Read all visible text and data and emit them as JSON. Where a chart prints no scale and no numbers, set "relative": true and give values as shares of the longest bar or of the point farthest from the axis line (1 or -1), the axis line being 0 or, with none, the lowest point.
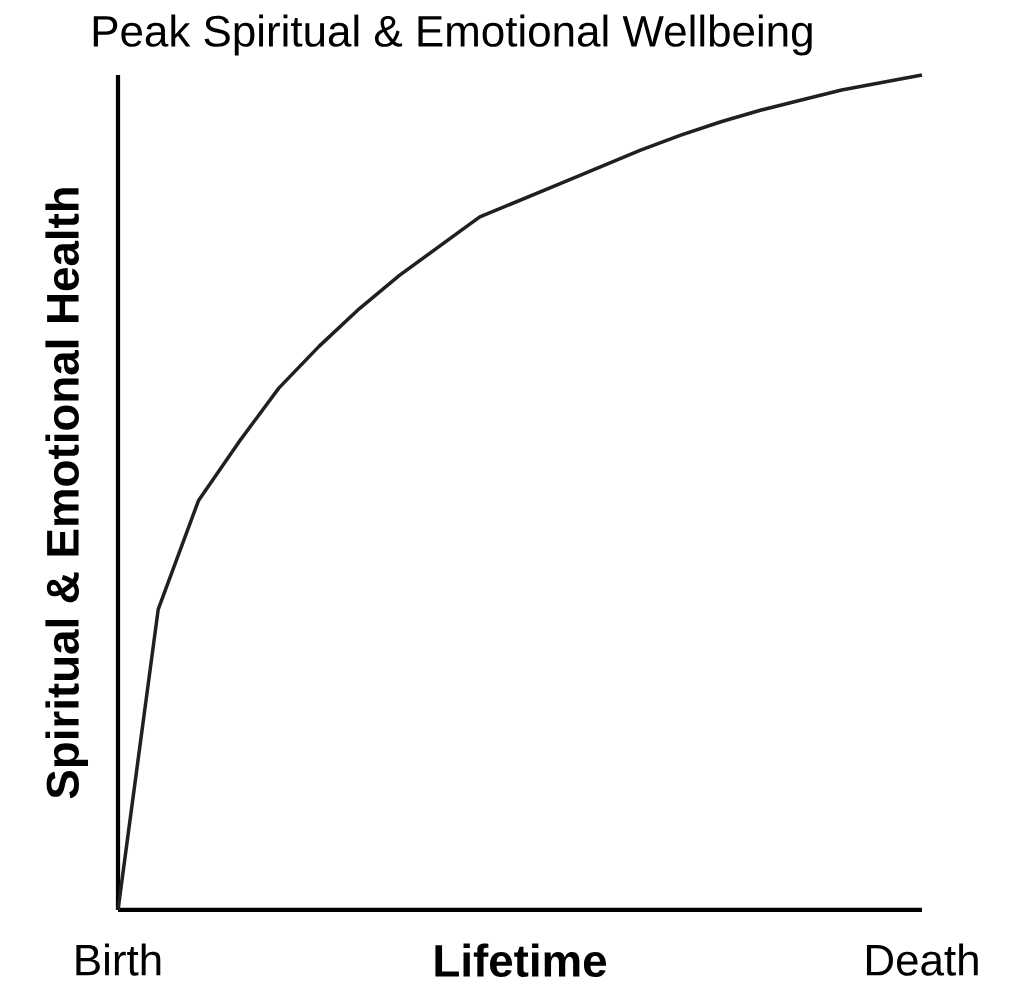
{
  "chart_data": {
    "type": "line",
    "title": "Peak Spiritual & Emotional Wellbeing",
    "xlabel": "Lifetime",
    "ylabel": "Spiritual & Emotional Health",
    "relative": true,
    "color": "#231f20",
    "marker": "none",
    "line_style": "solid",
    "tick_labels": "x",
    "categories": [
      "Birth",
      null,
      null,
      null,
      null,
      null,
      null,
      null,
      null,
      null,
      null,
      null,
      null,
      null,
      null,
      null,
      null,
      null,
      null,
      null,
      "Death"
    ],
    "values": [
      0,
      0.36,
      0.49,
      0.56,
      0.625,
      0.675,
      0.72,
      0.76,
      0.795,
      0.83,
      0.85,
      0.87,
      0.89,
      0.91,
      0.928,
      0.944,
      0.958,
      0.97,
      0.982,
      0.991,
      1.0
    ]
  }
}
